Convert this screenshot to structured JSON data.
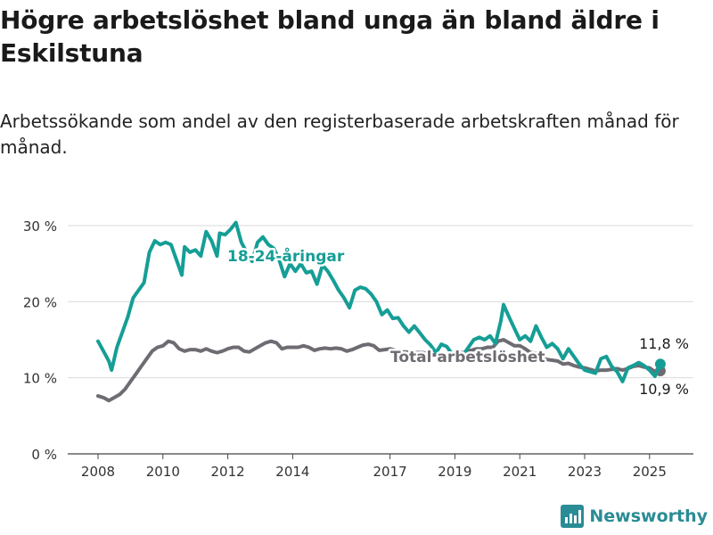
{
  "title": "Högre arbetslöshet bland unga än bland äldre i Eskilstuna",
  "subtitle": "Arbetssökande som andel av den registerbaserade arbetskraften månad för månad.",
  "brand": "Newsworthy",
  "colors": {
    "youth": "#159e96",
    "total": "#6f6b72",
    "grid": "#d9d9d9",
    "text": "#1a1a1a",
    "brand": "#2a8c95"
  },
  "chart_data": {
    "type": "line",
    "x_tick_labels": [
      "2008",
      "2010",
      "2012",
      "2014",
      "2017",
      "2019",
      "2021",
      "2023",
      "2025"
    ],
    "y_tick_labels": [
      "0 %",
      "10 %",
      "20 %",
      "30 %"
    ],
    "ylim": [
      0,
      30
    ],
    "xlim": [
      "2008-01",
      "2025-07"
    ],
    "grid": true,
    "series": [
      {
        "name": "18-24-åringar",
        "color": "#159e96",
        "end_label": "11,8 %",
        "points": [
          [
            "2008-01",
            14.8
          ],
          [
            "2008-03",
            13.5
          ],
          [
            "2008-05",
            12.2
          ],
          [
            "2008-06",
            11.0
          ],
          [
            "2008-08",
            14.0
          ],
          [
            "2008-10",
            16.0
          ],
          [
            "2008-12",
            18.0
          ],
          [
            "2009-02",
            20.5
          ],
          [
            "2009-04",
            21.5
          ],
          [
            "2009-06",
            22.5
          ],
          [
            "2009-08",
            26.5
          ],
          [
            "2009-10",
            28.0
          ],
          [
            "2009-12",
            27.5
          ],
          [
            "2010-02",
            27.8
          ],
          [
            "2010-04",
            27.5
          ],
          [
            "2010-06",
            25.5
          ],
          [
            "2010-08",
            23.5
          ],
          [
            "2010-09",
            27.2
          ],
          [
            "2010-11",
            26.5
          ],
          [
            "2011-01",
            26.8
          ],
          [
            "2011-03",
            26.0
          ],
          [
            "2011-05",
            29.2
          ],
          [
            "2011-07",
            28.0
          ],
          [
            "2011-09",
            26.0
          ],
          [
            "2011-10",
            29.0
          ],
          [
            "2011-12",
            28.8
          ],
          [
            "2012-02",
            29.5
          ],
          [
            "2012-04",
            30.4
          ],
          [
            "2012-06",
            27.8
          ],
          [
            "2012-08",
            26.5
          ],
          [
            "2012-10",
            25.3
          ],
          [
            "2012-12",
            27.8
          ],
          [
            "2013-02",
            28.5
          ],
          [
            "2013-04",
            27.5
          ],
          [
            "2013-06",
            27.0
          ],
          [
            "2013-08",
            25.5
          ],
          [
            "2013-10",
            23.3
          ],
          [
            "2013-12",
            25.0
          ],
          [
            "2014-02",
            24.0
          ],
          [
            "2014-04",
            25.0
          ],
          [
            "2014-06",
            23.8
          ],
          [
            "2014-08",
            24.0
          ],
          [
            "2014-10",
            22.3
          ],
          [
            "2014-12",
            24.8
          ],
          [
            "2015-02",
            24.0
          ],
          [
            "2015-04",
            22.8
          ],
          [
            "2015-06",
            21.5
          ],
          [
            "2015-08",
            20.5
          ],
          [
            "2015-10",
            19.2
          ],
          [
            "2015-12",
            21.5
          ],
          [
            "2016-02",
            21.9
          ],
          [
            "2016-04",
            21.7
          ],
          [
            "2016-06",
            21.0
          ],
          [
            "2016-08",
            20.0
          ],
          [
            "2016-10",
            18.3
          ],
          [
            "2016-12",
            18.9
          ],
          [
            "2017-02",
            17.8
          ],
          [
            "2017-04",
            17.9
          ],
          [
            "2017-06",
            16.8
          ],
          [
            "2017-08",
            16.0
          ],
          [
            "2017-10",
            16.8
          ],
          [
            "2017-12",
            15.9
          ],
          [
            "2018-02",
            15.0
          ],
          [
            "2018-04",
            14.3
          ],
          [
            "2018-06",
            13.3
          ],
          [
            "2018-08",
            14.4
          ],
          [
            "2018-10",
            14.1
          ],
          [
            "2018-12",
            13.1
          ],
          [
            "2019-02",
            13.5
          ],
          [
            "2019-04",
            13.0
          ],
          [
            "2019-06",
            14.0
          ],
          [
            "2019-08",
            15.0
          ],
          [
            "2019-10",
            15.3
          ],
          [
            "2019-12",
            15.0
          ],
          [
            "2020-02",
            15.5
          ],
          [
            "2020-04",
            14.5
          ],
          [
            "2020-06",
            17.5
          ],
          [
            "2020-07",
            19.6
          ],
          [
            "2020-09",
            18.0
          ],
          [
            "2020-11",
            16.5
          ],
          [
            "2021-01",
            15.0
          ],
          [
            "2021-03",
            15.5
          ],
          [
            "2021-05",
            14.8
          ],
          [
            "2021-07",
            16.8
          ],
          [
            "2021-09",
            15.3
          ],
          [
            "2021-11",
            14.0
          ],
          [
            "2022-01",
            14.5
          ],
          [
            "2022-03",
            13.8
          ],
          [
            "2022-05",
            12.5
          ],
          [
            "2022-07",
            13.8
          ],
          [
            "2022-09",
            12.8
          ],
          [
            "2022-11",
            11.8
          ],
          [
            "2023-01",
            11.0
          ],
          [
            "2023-03",
            10.8
          ],
          [
            "2023-05",
            10.6
          ],
          [
            "2023-07",
            12.5
          ],
          [
            "2023-09",
            12.8
          ],
          [
            "2023-11",
            11.5
          ],
          [
            "2024-01",
            10.8
          ],
          [
            "2024-03",
            9.5
          ],
          [
            "2024-05",
            11.3
          ],
          [
            "2024-07",
            11.6
          ],
          [
            "2024-09",
            12.0
          ],
          [
            "2024-11",
            11.6
          ],
          [
            "2025-01",
            11.0
          ],
          [
            "2025-03",
            10.2
          ],
          [
            "2025-05",
            11.8
          ]
        ]
      },
      {
        "name": "Total arbetslöshet",
        "color": "#6f6b72",
        "end_label": "10,9 %",
        "points": [
          [
            "2008-01",
            7.6
          ],
          [
            "2008-03",
            7.4
          ],
          [
            "2008-05",
            7.0
          ],
          [
            "2008-07",
            7.4
          ],
          [
            "2008-09",
            7.8
          ],
          [
            "2008-11",
            8.5
          ],
          [
            "2009-01",
            9.5
          ],
          [
            "2009-03",
            10.5
          ],
          [
            "2009-05",
            11.5
          ],
          [
            "2009-07",
            12.5
          ],
          [
            "2009-09",
            13.5
          ],
          [
            "2009-11",
            14.0
          ],
          [
            "2010-01",
            14.2
          ],
          [
            "2010-03",
            14.8
          ],
          [
            "2010-05",
            14.6
          ],
          [
            "2010-07",
            13.8
          ],
          [
            "2010-09",
            13.5
          ],
          [
            "2010-11",
            13.7
          ],
          [
            "2011-01",
            13.7
          ],
          [
            "2011-03",
            13.5
          ],
          [
            "2011-05",
            13.8
          ],
          [
            "2011-07",
            13.5
          ],
          [
            "2011-09",
            13.3
          ],
          [
            "2011-11",
            13.5
          ],
          [
            "2012-01",
            13.8
          ],
          [
            "2012-03",
            14.0
          ],
          [
            "2012-05",
            14.0
          ],
          [
            "2012-07",
            13.5
          ],
          [
            "2012-09",
            13.4
          ],
          [
            "2012-11",
            13.8
          ],
          [
            "2013-01",
            14.2
          ],
          [
            "2013-03",
            14.6
          ],
          [
            "2013-05",
            14.8
          ],
          [
            "2013-07",
            14.6
          ],
          [
            "2013-09",
            13.8
          ],
          [
            "2013-11",
            14.0
          ],
          [
            "2014-01",
            14.0
          ],
          [
            "2014-03",
            14.0
          ],
          [
            "2014-05",
            14.2
          ],
          [
            "2014-07",
            14.0
          ],
          [
            "2014-09",
            13.6
          ],
          [
            "2014-11",
            13.8
          ],
          [
            "2015-01",
            13.9
          ],
          [
            "2015-03",
            13.8
          ],
          [
            "2015-05",
            13.9
          ],
          [
            "2015-07",
            13.8
          ],
          [
            "2015-09",
            13.5
          ],
          [
            "2015-11",
            13.7
          ],
          [
            "2016-01",
            14.0
          ],
          [
            "2016-03",
            14.3
          ],
          [
            "2016-05",
            14.4
          ],
          [
            "2016-07",
            14.2
          ],
          [
            "2016-09",
            13.6
          ],
          [
            "2016-11",
            13.7
          ],
          [
            "2017-01",
            13.8
          ],
          [
            "2017-03",
            13.6
          ],
          [
            "2017-05",
            13.4
          ],
          [
            "2017-07",
            13.4
          ],
          [
            "2017-09",
            13.2
          ],
          [
            "2017-11",
            13.3
          ],
          [
            "2018-01",
            13.3
          ],
          [
            "2018-03",
            13.2
          ],
          [
            "2018-05",
            13.0
          ],
          [
            "2018-07",
            13.1
          ],
          [
            "2018-09",
            12.9
          ],
          [
            "2018-11",
            13.0
          ],
          [
            "2019-01",
            13.2
          ],
          [
            "2019-03",
            13.3
          ],
          [
            "2019-05",
            13.3
          ],
          [
            "2019-07",
            13.6
          ],
          [
            "2019-09",
            13.8
          ],
          [
            "2019-11",
            13.8
          ],
          [
            "2020-01",
            14.0
          ],
          [
            "2020-03",
            14.0
          ],
          [
            "2020-05",
            14.8
          ],
          [
            "2020-07",
            15.0
          ],
          [
            "2020-09",
            14.6
          ],
          [
            "2020-11",
            14.2
          ],
          [
            "2021-01",
            14.2
          ],
          [
            "2021-03",
            13.8
          ],
          [
            "2021-05",
            13.3
          ],
          [
            "2021-07",
            13.2
          ],
          [
            "2021-09",
            12.7
          ],
          [
            "2021-11",
            12.4
          ],
          [
            "2022-01",
            12.3
          ],
          [
            "2022-03",
            12.2
          ],
          [
            "2022-05",
            11.8
          ],
          [
            "2022-07",
            11.9
          ],
          [
            "2022-09",
            11.6
          ],
          [
            "2022-11",
            11.4
          ],
          [
            "2023-01",
            11.3
          ],
          [
            "2023-03",
            11.1
          ],
          [
            "2023-05",
            10.9
          ],
          [
            "2023-07",
            11.0
          ],
          [
            "2023-09",
            11.0
          ],
          [
            "2023-11",
            11.1
          ],
          [
            "2024-01",
            11.2
          ],
          [
            "2024-03",
            11.0
          ],
          [
            "2024-05",
            11.2
          ],
          [
            "2024-07",
            11.5
          ],
          [
            "2024-09",
            11.6
          ],
          [
            "2024-11",
            11.4
          ],
          [
            "2025-01",
            11.3
          ],
          [
            "2025-03",
            10.8
          ],
          [
            "2025-05",
            10.9
          ]
        ]
      }
    ]
  }
}
